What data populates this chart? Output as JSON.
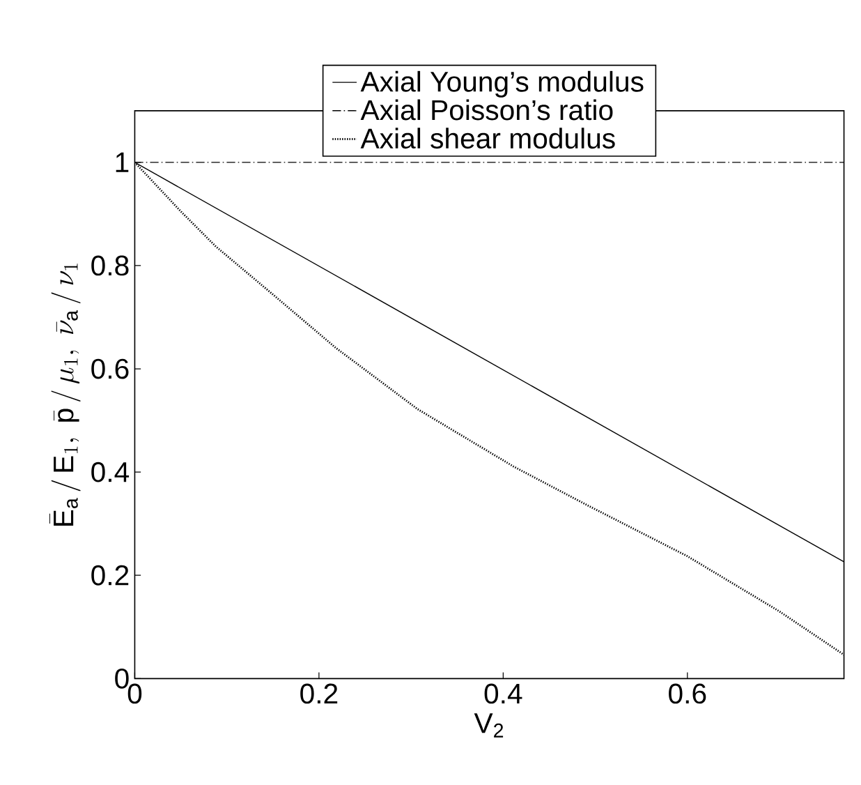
{
  "chart_data": {
    "type": "line",
    "xlabel": "V$_{2}$",
    "ylabel": "\\bar{\\mathrm{E}}_\\mathrm{a} \\,/\\, \\mathrm{E}_1,\\ \\bar{\\mathrm{p}} \\,/\\, \\mu_1,\\ \\bar{\\nu}_\\mathrm{a} \\,/\\, \\nu_1",
    "xlim": [
      0,
      0.77
    ],
    "ylim": [
      0,
      1.1
    ],
    "xticks": [
      0,
      0.2,
      0.4,
      0.6
    ],
    "yticks": [
      0,
      0.2,
      0.4,
      0.6,
      0.8,
      1
    ],
    "grid": false,
    "legend": "top",
    "series": [
      {
        "name": "Axial Young’s modulus",
        "color": "#000000",
        "line_style": "solid",
        "x": [
          0,
          0.77
        ],
        "values": [
          1,
          0.226
        ]
      },
      {
        "name": "Axial Poisson’s ratio",
        "color": "#000000",
        "line_style": "dashdot",
        "x": [
          0,
          0.77
        ],
        "values": [
          1,
          1
        ]
      },
      {
        "name": "Axial shear modulus",
        "color": "#000000",
        "line_style": "dotted",
        "x": [
          0,
          0.05,
          0.088,
          0.15,
          0.218,
          0.307,
          0.411,
          0.49,
          0.6,
          0.7,
          0.77
        ],
        "values": [
          1,
          0.905,
          0.837,
          0.744,
          0.641,
          0.522,
          0.411,
          0.337,
          0.237,
          0.13,
          0.046
        ]
      }
    ]
  }
}
